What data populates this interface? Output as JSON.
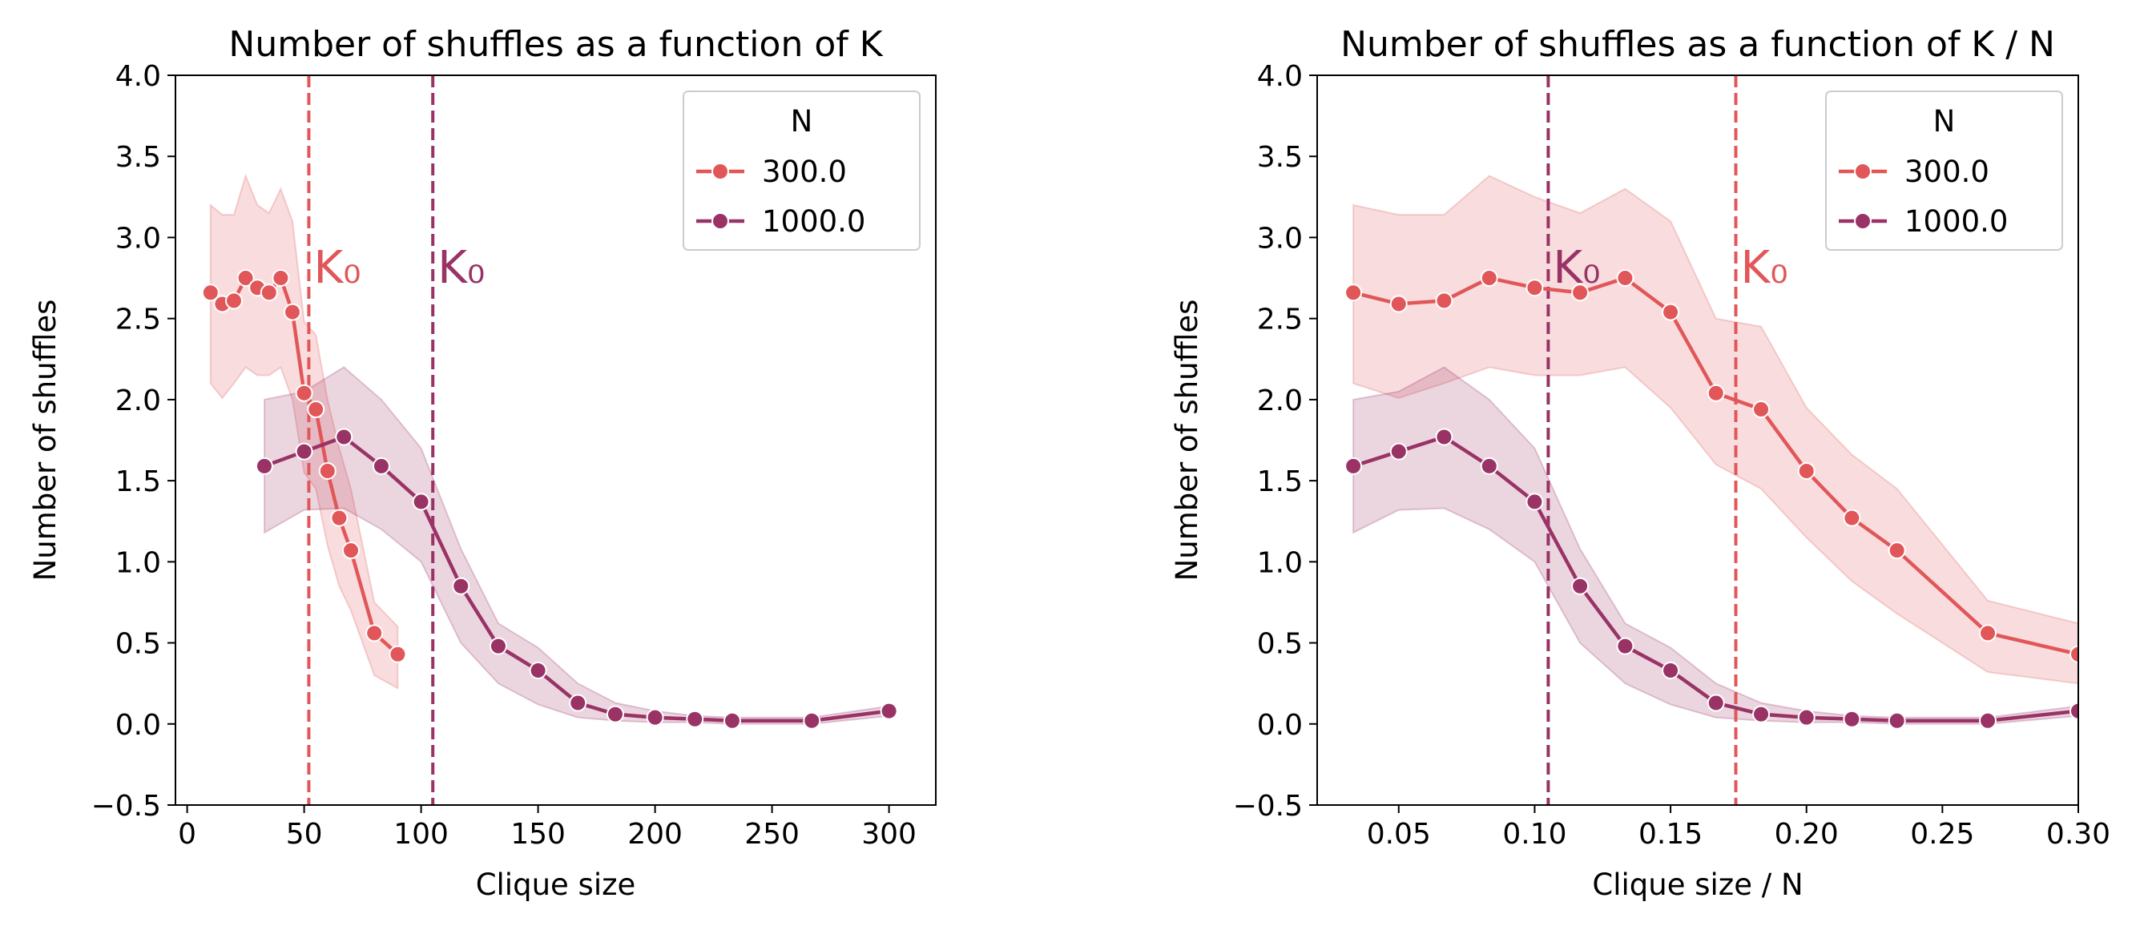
{
  "chart_data": [
    {
      "type": "line",
      "title": "Number of shuffles as a function of K",
      "xlabel": "Clique size",
      "ylabel": "Number of shuffles",
      "xlim": [
        -5,
        320
      ],
      "ylim": [
        -0.5,
        4.0
      ],
      "xticks": [
        "0",
        "50",
        "100",
        "150",
        "200",
        "250",
        "300"
      ],
      "xtick_values": [
        0,
        50,
        100,
        150,
        200,
        250,
        300
      ],
      "yticks": [
        "−0.5",
        "0.0",
        "0.5",
        "1.0",
        "1.5",
        "2.0",
        "2.5",
        "3.0",
        "3.5",
        "4.0"
      ],
      "ytick_values": [
        -0.5,
        0.0,
        0.5,
        1.0,
        1.5,
        2.0,
        2.5,
        3.0,
        3.5,
        4.0
      ],
      "grid": false,
      "legend": {
        "title": "N",
        "placement": "upper-right"
      },
      "series": [
        {
          "name": "300.0",
          "color": "#e15759",
          "x": [
            10,
            15,
            20,
            25,
            30,
            35,
            40,
            45,
            50,
            55,
            60,
            65,
            70,
            80,
            90
          ],
          "y": [
            2.66,
            2.59,
            2.61,
            2.75,
            2.69,
            2.66,
            2.75,
            2.54,
            2.04,
            1.94,
            1.56,
            1.27,
            1.07,
            0.56,
            0.43
          ],
          "ci_low": [
            2.1,
            2.01,
            2.1,
            2.2,
            2.15,
            2.15,
            2.2,
            2.0,
            1.55,
            1.45,
            1.1,
            0.85,
            0.7,
            0.3,
            0.22
          ],
          "ci_high": [
            3.2,
            3.14,
            3.14,
            3.38,
            3.2,
            3.15,
            3.3,
            3.1,
            2.48,
            2.4,
            2.0,
            1.7,
            1.45,
            0.75,
            0.6
          ]
        },
        {
          "name": "1000.0",
          "color": "#993366",
          "x": [
            33,
            50,
            67,
            83,
            100,
            117,
            133,
            150,
            167,
            183,
            200,
            217,
            233,
            267,
            300
          ],
          "y": [
            1.59,
            1.68,
            1.77,
            1.59,
            1.37,
            0.85,
            0.48,
            0.33,
            0.13,
            0.06,
            0.04,
            0.03,
            0.02,
            0.02,
            0.08
          ],
          "ci_low": [
            1.18,
            1.32,
            1.33,
            1.2,
            1.0,
            0.5,
            0.25,
            0.12,
            0.04,
            0.02,
            0.01,
            0.01,
            0.0,
            0.0,
            0.05
          ],
          "ci_high": [
            2.0,
            2.05,
            2.2,
            2.0,
            1.7,
            1.08,
            0.62,
            0.47,
            0.25,
            0.13,
            0.08,
            0.05,
            0.04,
            0.04,
            0.11
          ]
        }
      ],
      "vlines": [
        {
          "x": 52,
          "color": "#e15759",
          "label": "K₀"
        },
        {
          "x": 105,
          "color": "#993366",
          "label": "K₀"
        }
      ]
    },
    {
      "type": "line",
      "title": "Number of shuffles as a function of K / N",
      "xlabel": "Clique size / N",
      "ylabel": "Number of shuffles",
      "xlim": [
        0.02,
        0.3
      ],
      "ylim": [
        -0.5,
        4.0
      ],
      "xticks": [
        "0.05",
        "0.10",
        "0.15",
        "0.20",
        "0.25",
        "0.30"
      ],
      "xtick_values": [
        0.05,
        0.1,
        0.15,
        0.2,
        0.25,
        0.3
      ],
      "yticks": [
        "−0.5",
        "0.0",
        "0.5",
        "1.0",
        "1.5",
        "2.0",
        "2.5",
        "3.0",
        "3.5",
        "4.0"
      ],
      "ytick_values": [
        -0.5,
        0.0,
        0.5,
        1.0,
        1.5,
        2.0,
        2.5,
        3.0,
        3.5,
        4.0
      ],
      "grid": false,
      "legend": {
        "title": "N",
        "placement": "upper-right"
      },
      "series": [
        {
          "name": "300.0",
          "color": "#e15759",
          "x": [
            0.0333,
            0.05,
            0.0667,
            0.0833,
            0.1,
            0.1167,
            0.1333,
            0.15,
            0.1667,
            0.1833,
            0.2,
            0.2167,
            0.2333,
            0.2667,
            0.3
          ],
          "y": [
            2.66,
            2.59,
            2.61,
            2.75,
            2.69,
            2.66,
            2.75,
            2.54,
            2.04,
            1.94,
            1.56,
            1.27,
            1.07,
            0.56,
            0.43
          ],
          "ci_low": [
            2.1,
            2.01,
            2.1,
            2.2,
            2.15,
            2.15,
            2.2,
            1.95,
            1.6,
            1.45,
            1.15,
            0.88,
            0.68,
            0.32,
            0.25
          ],
          "ci_high": [
            3.2,
            3.14,
            3.14,
            3.38,
            3.25,
            3.15,
            3.3,
            3.1,
            2.5,
            2.45,
            1.95,
            1.66,
            1.45,
            0.76,
            0.62
          ]
        },
        {
          "name": "1000.0",
          "color": "#993366",
          "x": [
            0.0333,
            0.05,
            0.0667,
            0.0833,
            0.1,
            0.1167,
            0.1333,
            0.15,
            0.1667,
            0.1833,
            0.2,
            0.2167,
            0.2333,
            0.2667,
            0.3
          ],
          "y": [
            1.59,
            1.68,
            1.77,
            1.59,
            1.37,
            0.85,
            0.48,
            0.33,
            0.13,
            0.06,
            0.04,
            0.03,
            0.02,
            0.02,
            0.08
          ],
          "ci_low": [
            1.18,
            1.32,
            1.33,
            1.2,
            1.0,
            0.5,
            0.25,
            0.12,
            0.04,
            0.02,
            0.01,
            0.01,
            0.0,
            0.0,
            0.05
          ],
          "ci_high": [
            2.0,
            2.05,
            2.2,
            2.0,
            1.7,
            1.08,
            0.62,
            0.47,
            0.25,
            0.13,
            0.08,
            0.05,
            0.04,
            0.04,
            0.11
          ]
        }
      ],
      "vlines": [
        {
          "x": 0.105,
          "color": "#993366",
          "label": "K₀"
        },
        {
          "x": 0.174,
          "color": "#e15759",
          "label": "K₀"
        }
      ]
    }
  ]
}
